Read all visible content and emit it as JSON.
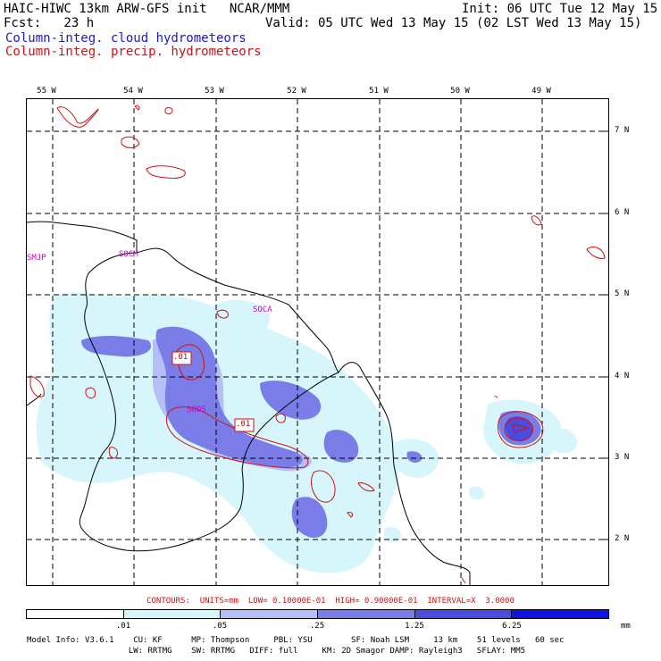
{
  "header": {
    "line1_left": "HAIC-HIWC 13km ARW-GFS init   NCAR/MMM",
    "line1_right": "Init: 06 UTC Tue 12 May 15",
    "line2_left": "Fcst:   23 h",
    "line2_right": "Valid: 05 UTC Wed 13 May 15 (02 LST Wed 13 May 15)",
    "line3": "Column-integ. cloud hydrometeors",
    "line4": "Column-integ. precip. hydrometeors"
  },
  "map": {
    "lon_labels": [
      "55 W",
      "54 W",
      "53 W",
      "52 W",
      "51 W",
      "50 W",
      "49 W"
    ],
    "lat_labels": [
      "7 N",
      "6 N",
      "5 N",
      "4 N",
      "3 N",
      "2 N"
    ],
    "station_labels": [
      "SMJP",
      "SOCM",
      "SOCA",
      "SOOS"
    ],
    "contour_labels": [
      ".01",
      ".01"
    ]
  },
  "contour_info": "CONTOURS:  UNITS=mm  LOW= 0.10000E-01  HIGH= 0.90000E-01  INTERVAL=X  3.0000",
  "colorbar": {
    "colors": [
      "#ffffff",
      "#d6f6fb",
      "#b4bff8",
      "#7a7de8",
      "#4a4ce0",
      "#1010e8"
    ],
    "labels": [
      ".01",
      ".05",
      ".25",
      "1.25",
      "6.25"
    ],
    "unit": "mm"
  },
  "footer": {
    "line1": "Model Info: V3.6.1    CU: KF      MP: Thompson     PBL: YSU        SF: Noah LSM     13 km    51 levels   60 sec",
    "line2": "                     LW: RRTMG    SW: RRTMG   DIFF: full     KM: 2D Smagor DAMP: Rayleigh3   SFLAY: MM5"
  },
  "colors": {
    "cloud_light": "#d6f6fb",
    "cloud_mid": "#b4bff8",
    "cloud_strong": "#7a7de8",
    "precip_contour": "#d01010",
    "station_label": "#cc00cc"
  }
}
